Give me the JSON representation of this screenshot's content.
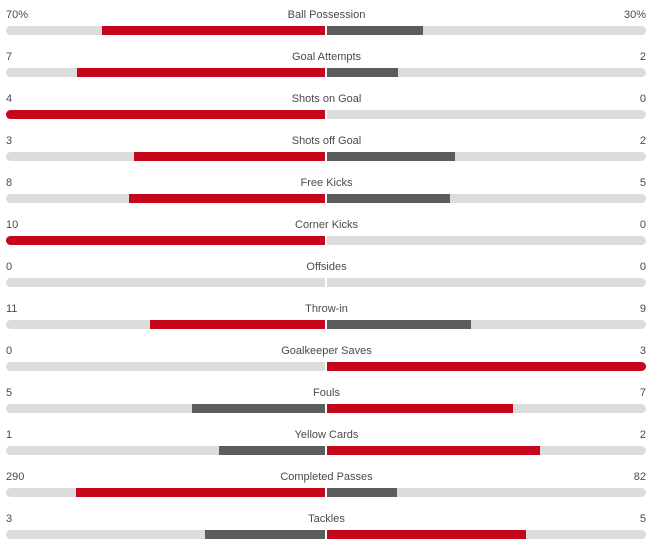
{
  "colors": {
    "leader": "#c4071b",
    "trailer": "#5c5c5c",
    "track": "#dcdcdc",
    "text": "#4a4a4a"
  },
  "stats": [
    {
      "name": "Ball Possession",
      "home": "70%",
      "away": "30%",
      "home_value": 70,
      "away_value": 30
    },
    {
      "name": "Goal Attempts",
      "home": "7",
      "away": "2",
      "home_value": 7,
      "away_value": 2
    },
    {
      "name": "Shots on Goal",
      "home": "4",
      "away": "0",
      "home_value": 4,
      "away_value": 0
    },
    {
      "name": "Shots off Goal",
      "home": "3",
      "away": "2",
      "home_value": 3,
      "away_value": 2
    },
    {
      "name": "Free Kicks",
      "home": "8",
      "away": "5",
      "home_value": 8,
      "away_value": 5
    },
    {
      "name": "Corner Kicks",
      "home": "10",
      "away": "0",
      "home_value": 10,
      "away_value": 0
    },
    {
      "name": "Offsides",
      "home": "0",
      "away": "0",
      "home_value": 0,
      "away_value": 0
    },
    {
      "name": "Throw-in",
      "home": "11",
      "away": "9",
      "home_value": 11,
      "away_value": 9
    },
    {
      "name": "Goalkeeper Saves",
      "home": "0",
      "away": "3",
      "home_value": 0,
      "away_value": 3
    },
    {
      "name": "Fouls",
      "home": "5",
      "away": "7",
      "home_value": 5,
      "away_value": 7
    },
    {
      "name": "Yellow Cards",
      "home": "1",
      "away": "2",
      "home_value": 1,
      "away_value": 2
    },
    {
      "name": "Completed Passes",
      "home": "290",
      "away": "82",
      "home_value": 290,
      "away_value": 82
    },
    {
      "name": "Tackles",
      "home": "3",
      "away": "5",
      "home_value": 3,
      "away_value": 5
    }
  ]
}
